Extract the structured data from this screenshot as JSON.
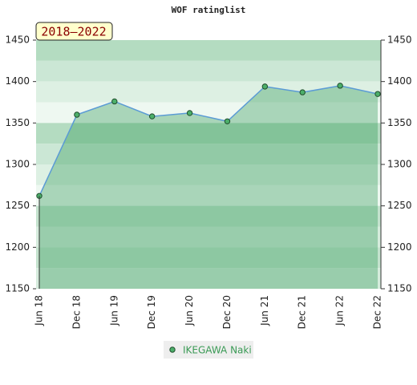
{
  "chart_data": {
    "type": "area",
    "title": "WOF ratinglist",
    "period_label": "2018–2022",
    "categories": [
      "Jun 18",
      "Dec 18",
      "Jun 19",
      "Dec 19",
      "Jun 20",
      "Dec 20",
      "Jun 21",
      "Dec 21",
      "Jun 22",
      "Dec 22"
    ],
    "series": [
      {
        "name": "IKEGAWA Naki",
        "color": "#5b9bd5",
        "marker_color": "#4caf6a",
        "values": [
          1262,
          1360,
          1376,
          1358,
          1362,
          1352,
          1394,
          1387,
          1395,
          1385
        ]
      }
    ],
    "ylim": [
      1150,
      1450
    ],
    "yticks": [
      1150,
      1200,
      1250,
      1300,
      1350,
      1400,
      1450
    ],
    "y2lim": [
      1150,
      1450
    ],
    "y2ticks": [
      1150,
      1200,
      1250,
      1300,
      1350,
      1400,
      1450
    ]
  }
}
